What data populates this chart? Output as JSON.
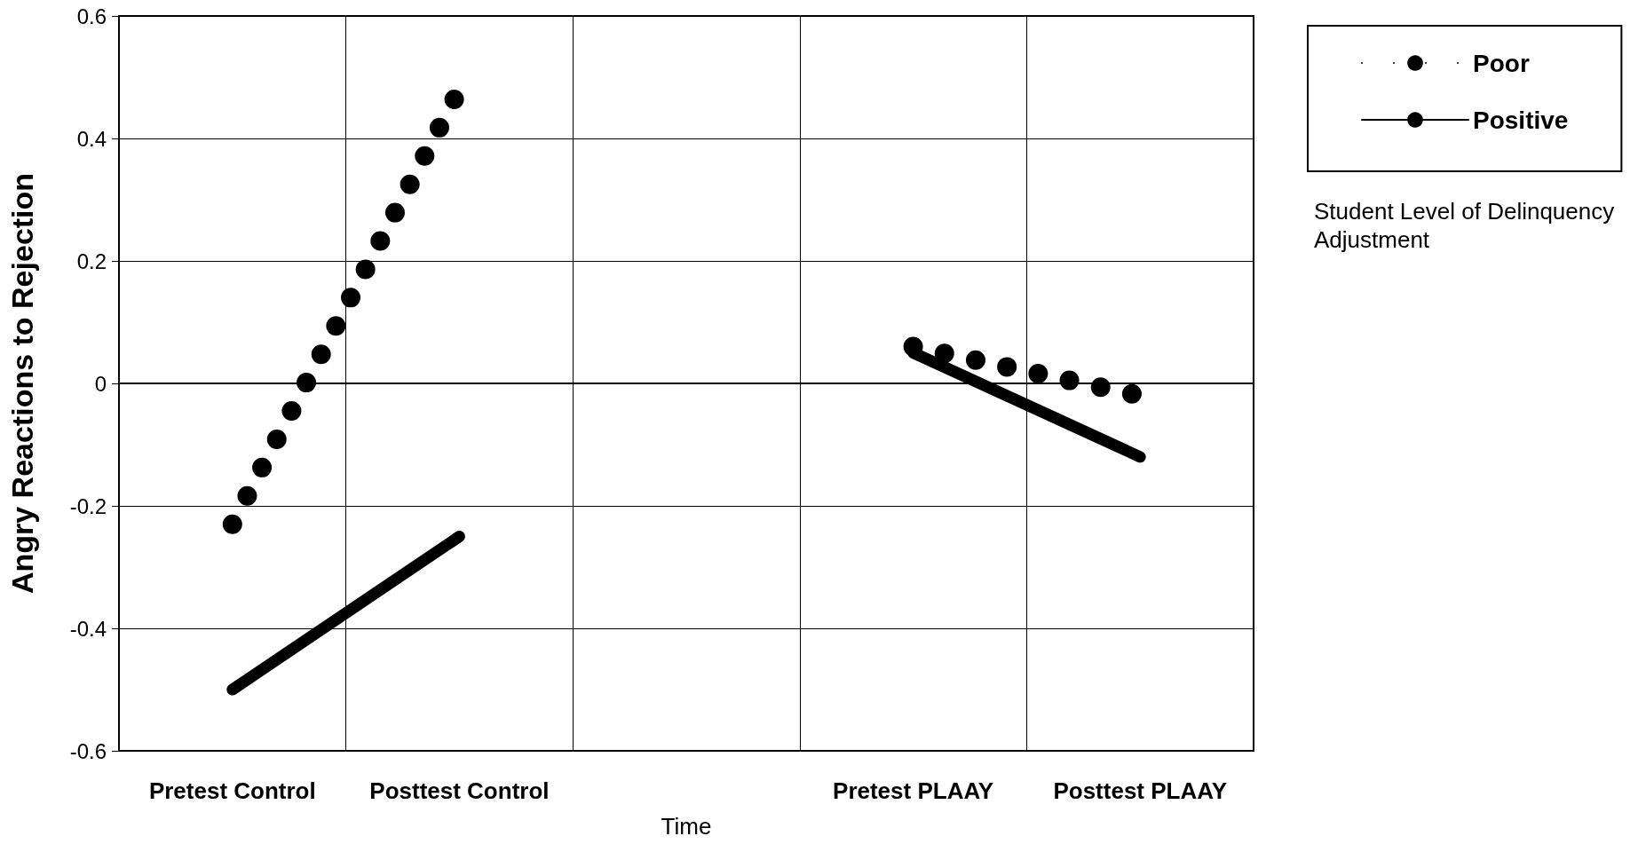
{
  "chart_data": {
    "type": "line",
    "xlabel": "Time",
    "ylabel": "Angry Reactions to Rejection",
    "legend_title": "Student Level of Delinquency Adjustment",
    "categories": [
      "Pretest Control",
      "Posttest Control",
      null,
      "Pretest PLAAY",
      "Posttest PLAAY"
    ],
    "series": [
      {
        "name": "Poor",
        "color": "#000000",
        "line_style": "dotted",
        "values": [
          -0.23,
          0.48,
          null,
          0.06,
          -0.02
        ]
      },
      {
        "name": "Positive",
        "color": "#000000",
        "line_style": "solid",
        "values": [
          -0.5,
          -0.25,
          null,
          0.05,
          -0.12
        ]
      }
    ],
    "ylim": [
      -0.6,
      0.6
    ],
    "yticks": [
      -0.6,
      -0.4,
      -0.2,
      0,
      0.2,
      0.4,
      0.6
    ],
    "grid": true,
    "legend": "top right",
    "marker": "none",
    "ref_lines": [
      {
        "axis": "y",
        "value": 0,
        "color": "#000000"
      }
    ]
  }
}
